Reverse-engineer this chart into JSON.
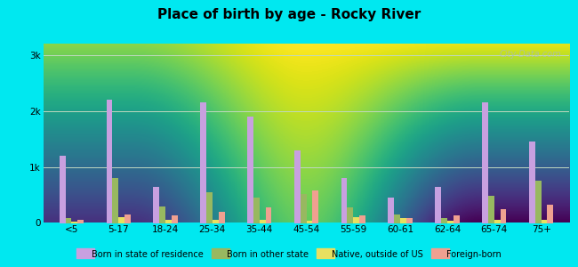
{
  "title": "Place of birth by age - Rocky River",
  "categories": [
    "<5",
    "5-17",
    "18-24",
    "25-34",
    "35-44",
    "45-54",
    "55-59",
    "60-61",
    "62-64",
    "65-74",
    "75+"
  ],
  "series": {
    "Born in state of residence": [
      1200,
      2200,
      650,
      2150,
      1900,
      1300,
      800,
      450,
      650,
      2150,
      1450
    ],
    "Born in other state": [
      80,
      800,
      300,
      550,
      450,
      520,
      280,
      150,
      90,
      490,
      750
    ],
    "Native, outside of US": [
      20,
      110,
      60,
      50,
      60,
      40,
      100,
      80,
      40,
      50,
      60
    ],
    "Foreign-born": [
      50,
      150,
      130,
      200,
      280,
      580,
      140,
      90,
      130,
      250,
      330
    ]
  },
  "colors": {
    "Born in state of residence": "#c8a0e0",
    "Born in other state": "#98b860",
    "Native, outside of US": "#e8e060",
    "Foreign-born": "#f0a090"
  },
  "ylim": [
    0,
    3200
  ],
  "yticks": [
    0,
    1000,
    2000,
    3000
  ],
  "ytick_labels": [
    "0",
    "1k",
    "2k",
    "3k"
  ],
  "figure_bg": "#00e8f0",
  "plot_bg_top": "#f0faf8",
  "plot_bg_bottom": "#c8ecc0",
  "grid_color": "#c0d8c0",
  "watermark": "City-Data.com"
}
